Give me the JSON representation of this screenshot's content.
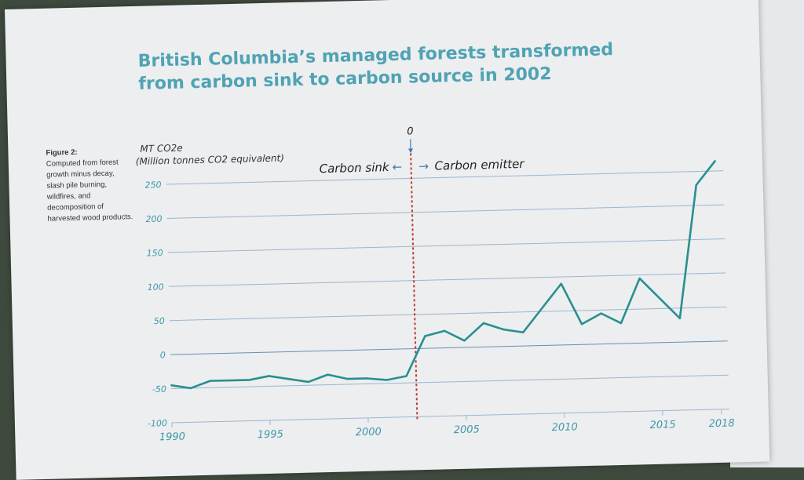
{
  "figure": {
    "title": "British Columbia’s managed forests transformed from carbon sink to carbon source in 2002",
    "caption_label": "Figure 2:",
    "caption_text": "Computed from forest growth minus decay, slash pile burning, wildfires, and decomposition of harvested wood products."
  },
  "chart_data": {
    "type": "line",
    "ylabel_line1": "MT CO2e",
    "ylabel_line2": "(Million tonnes CO2 equivalent)",
    "ylim": [
      -100,
      250
    ],
    "yticks": [
      -100,
      -50,
      0,
      50,
      100,
      150,
      200,
      250
    ],
    "xticks": [
      1990,
      1995,
      2000,
      2005,
      2010,
      2015,
      2018
    ],
    "xlim": [
      1990,
      2018
    ],
    "grid": true,
    "line_color": "#2a8f8f",
    "marker": {
      "x": 2002.5,
      "label": "0",
      "color": "#c0392b"
    },
    "annotations": {
      "left": "Carbon sink",
      "right": "Carbon emitter"
    },
    "x": [
      1990,
      1991,
      1992,
      1993,
      1994,
      1995,
      1996,
      1997,
      1998,
      1999,
      2000,
      2001,
      2002,
      2003,
      2004,
      2005,
      2006,
      2007,
      2008,
      2009,
      2010,
      2011,
      2012,
      2013,
      2014,
      2015,
      2016,
      2017,
      2018
    ],
    "values": [
      -45,
      -50,
      -40,
      -40,
      -40,
      -35,
      -40,
      -45,
      -35,
      -42,
      -42,
      -45,
      -40,
      18,
      25,
      10,
      35,
      25,
      20,
      55,
      90,
      30,
      45,
      30,
      95,
      65,
      35,
      230,
      265
    ]
  }
}
